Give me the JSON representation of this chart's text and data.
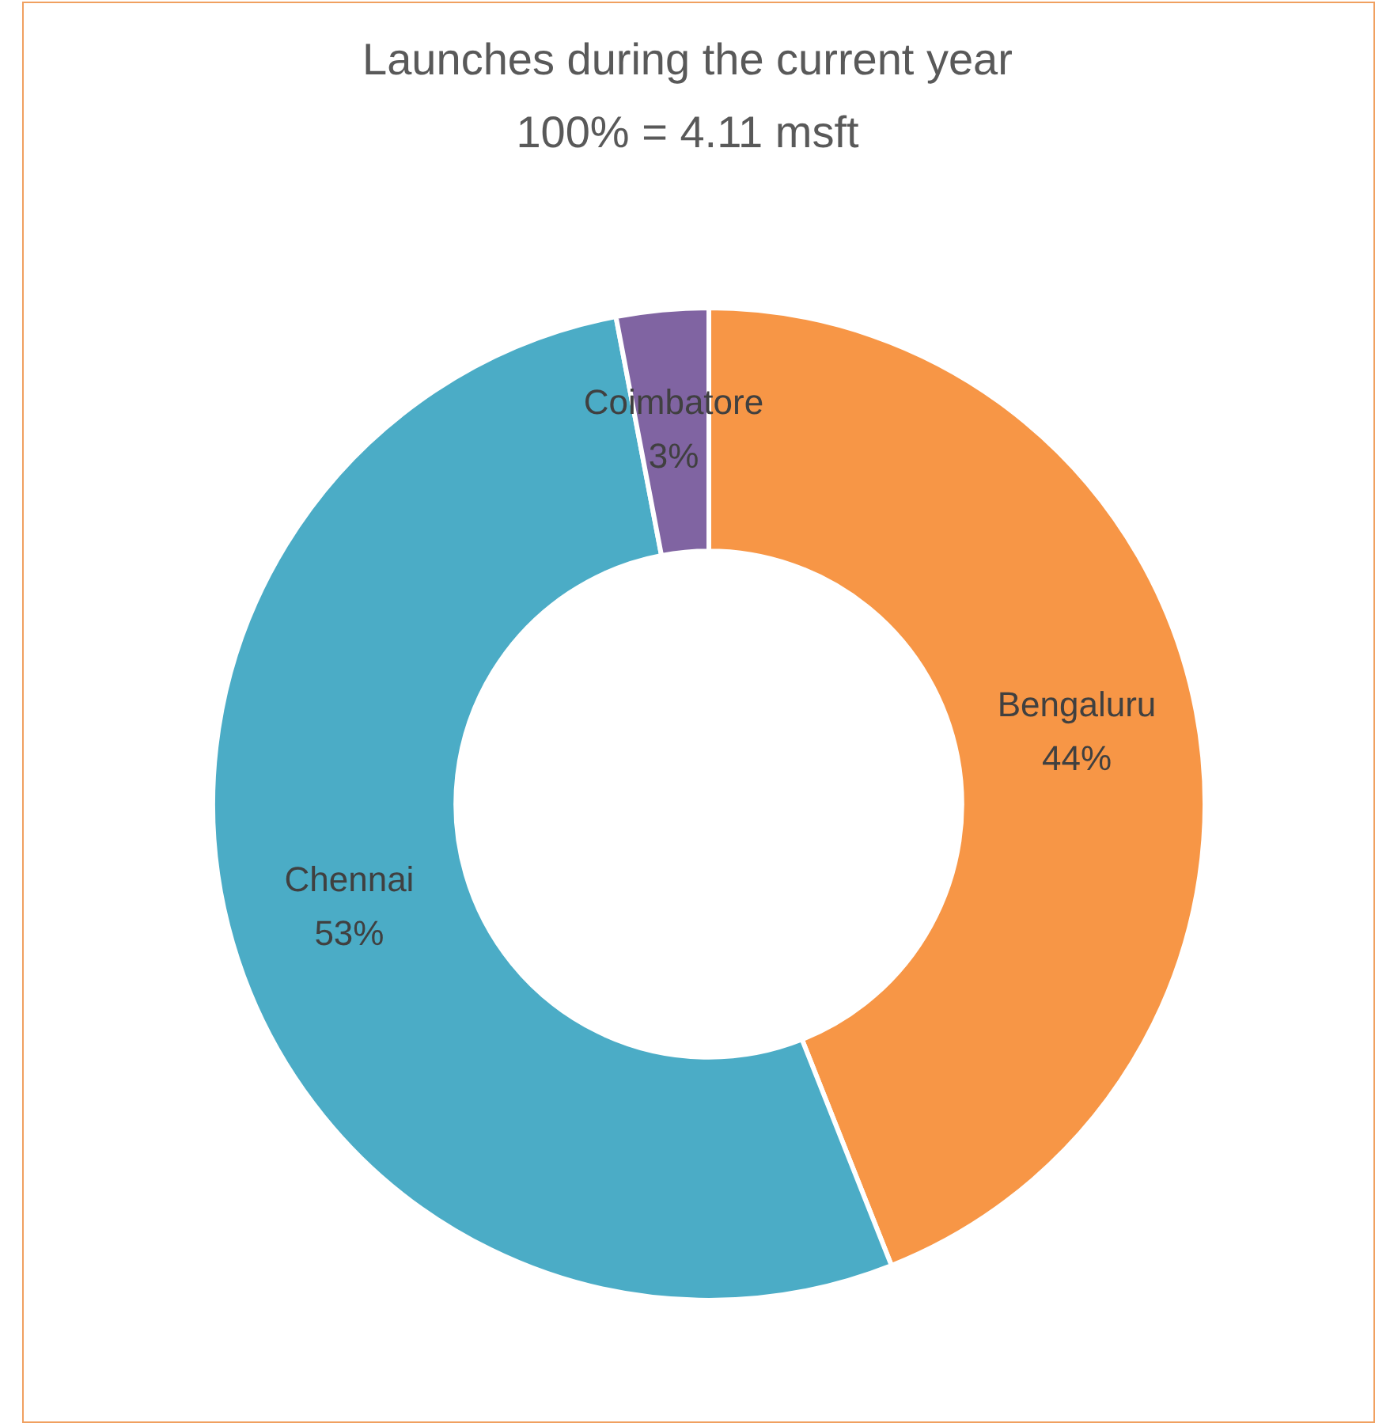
{
  "chart_data": {
    "type": "donut",
    "title": "Launches during the current year",
    "subtitle": "100% = 4.11 msft",
    "categories": [
      "Bengaluru",
      "Chennai",
      "Coimbatore"
    ],
    "values": [
      44,
      53,
      3
    ],
    "colors": [
      "#f79646",
      "#4bacc6",
      "#8064a2"
    ],
    "value_labels": [
      "44%",
      "53%",
      "3%"
    ],
    "legend": false
  }
}
